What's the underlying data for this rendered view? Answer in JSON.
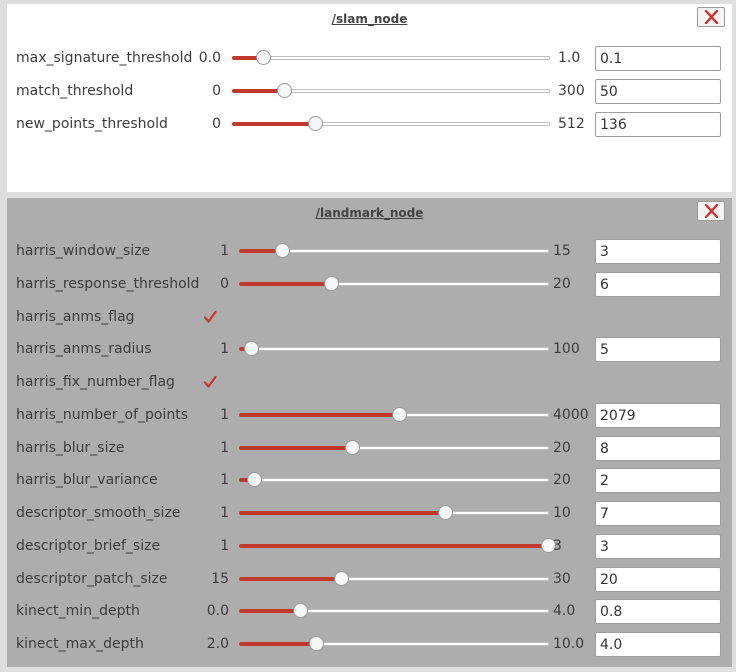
{
  "colors": {
    "slider_fill": "#c0392b",
    "close_x": "#d32f2f",
    "checkmark": "#c0392b",
    "slam_panel_bg": "#ffffff",
    "landmark_panel_bg": "#adadad"
  },
  "panels": [
    {
      "id": "slam",
      "title": "/slam_node",
      "close_icon": "close-x-icon",
      "params": [
        {
          "name": "max_signature_threshold",
          "type": "slider",
          "min": "0.0",
          "max": "1.0",
          "value": "0.1",
          "level": 0.1
        },
        {
          "name": "match_threshold",
          "type": "slider",
          "min": "0",
          "max": "300",
          "value": "50",
          "level": 0.1667
        },
        {
          "name": "new_points_threshold",
          "type": "slider",
          "min": "0",
          "max": "512",
          "value": "136",
          "level": 0.2656
        }
      ]
    },
    {
      "id": "landmark",
      "title": "/landmark_node",
      "close_icon": "close-x-icon",
      "params": [
        {
          "name": "harris_window_size",
          "type": "slider",
          "min": "1",
          "max": "15",
          "value": "3",
          "level": 0.1429
        },
        {
          "name": "harris_response_threshold",
          "type": "slider",
          "min": "0",
          "max": "20",
          "value": "6",
          "level": 0.3
        },
        {
          "name": "harris_anms_flag",
          "type": "checkbox",
          "checked": true
        },
        {
          "name": "harris_anms_radius",
          "type": "slider",
          "min": "1",
          "max": "100",
          "value": "5",
          "level": 0.0404
        },
        {
          "name": "harris_fix_number_flag",
          "type": "checkbox",
          "checked": true
        },
        {
          "name": "harris_number_of_points",
          "type": "slider",
          "min": "1",
          "max": "4000",
          "value": "2079",
          "level": 0.5196
        },
        {
          "name": "harris_blur_size",
          "type": "slider",
          "min": "1",
          "max": "20",
          "value": "8",
          "level": 0.3684
        },
        {
          "name": "harris_blur_variance",
          "type": "slider",
          "min": "1",
          "max": "20",
          "value": "2",
          "level": 0.0526
        },
        {
          "name": "descriptor_smooth_size",
          "type": "slider",
          "min": "1",
          "max": "10",
          "value": "7",
          "level": 0.6667
        },
        {
          "name": "descriptor_brief_size",
          "type": "slider",
          "min": "1",
          "max": "3",
          "value": "3",
          "level": 1.0
        },
        {
          "name": "descriptor_patch_size",
          "type": "slider",
          "min": "15",
          "max": "30",
          "value": "20",
          "level": 0.3333
        },
        {
          "name": "kinect_min_depth",
          "type": "slider",
          "min": "0.0",
          "max": "4.0",
          "value": "0.8",
          "level": 0.2
        },
        {
          "name": "kinect_max_depth",
          "type": "slider",
          "min": "2.0",
          "max": "10.0",
          "value": "4.0",
          "level": 0.25
        }
      ]
    }
  ]
}
